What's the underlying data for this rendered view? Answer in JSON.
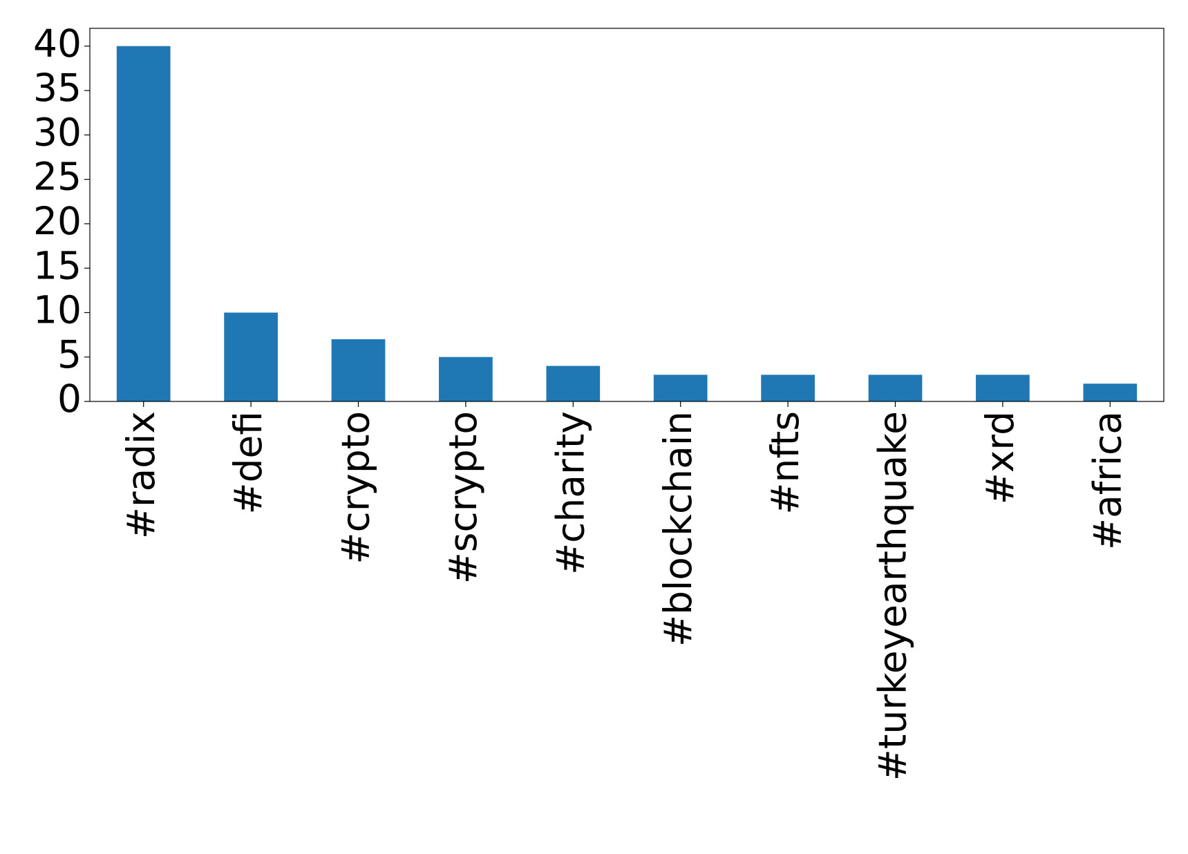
{
  "chart_data": {
    "type": "bar",
    "categories": [
      "#radix",
      "#defi",
      "#crypto",
      "#scrypto",
      "#charity",
      "#blockchain",
      "#nfts",
      "#turkeyearthquake",
      "#xrd",
      "#africa"
    ],
    "values": [
      40,
      10,
      7,
      5,
      4,
      3,
      3,
      3,
      3,
      2
    ],
    "color": "#1f77b4",
    "ylim": [
      0,
      42
    ],
    "yticks": [
      0,
      5,
      10,
      15,
      20,
      25,
      30,
      35,
      40
    ],
    "grid": false
  }
}
